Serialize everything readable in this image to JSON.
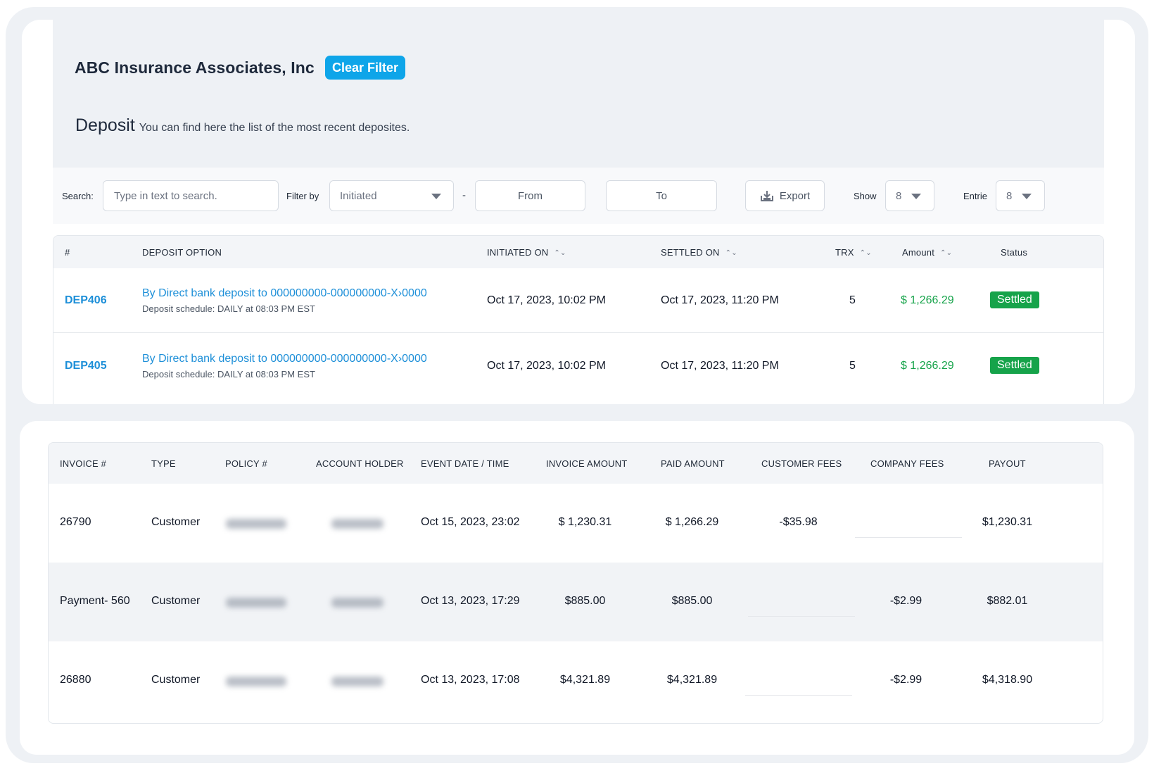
{
  "header": {
    "company": "ABC Insurance Associates, Inc",
    "clear_filter": "Clear Filter",
    "section_title": "Deposit",
    "section_subtitle": "You can find here the list of the most recent deposites."
  },
  "filters": {
    "search_label": "Search:",
    "search_placeholder": "Type in text to search.",
    "filter_by_label": "Filter by",
    "filter_by_value": "Initiated",
    "dash": "-",
    "from": "From",
    "to": "To",
    "export": "Export",
    "show_label": "Show",
    "show_value": "8",
    "entries_label": "Entrie",
    "entries_value": "8"
  },
  "deposits": {
    "headers": {
      "id": "#",
      "option": "DEPOSIT OPTION",
      "initiated": "INITIATED ON",
      "settled": "SETTLED ON",
      "trx": "TRX",
      "amount": "Amount",
      "status": "Status"
    },
    "sort_icon": "⌃⌄",
    "rows": [
      {
        "id": "DEP406",
        "option": "By Direct bank deposit to 000000000-000000000-X›0000",
        "schedule": "Deposit schedule: DAILY at 08:03 PM EST",
        "initiated": "Oct 17, 2023, 10:02 PM",
        "settled": "Oct 17, 2023, 11:20 PM",
        "trx": "5",
        "amount": "$ 1,266.29",
        "status": "Settled"
      },
      {
        "id": "DEP405",
        "option": "By Direct bank deposit to 000000000-000000000-X›0000",
        "schedule": "Deposit schedule: DAILY at 08:03 PM EST",
        "initiated": "Oct 17, 2023, 10:02 PM",
        "settled": "Oct 17, 2023, 11:20 PM",
        "trx": "5",
        "amount": "$ 1,266.29",
        "status": "Settled"
      }
    ]
  },
  "invoices": {
    "headers": {
      "invoice": "INVOICE #",
      "type": "TYPE",
      "policy": "POLICY #",
      "holder": "ACCOUNT HOLDER",
      "event": "EVENT DATE / TIME",
      "invoice_amount": "INVOICE AMOUNT",
      "paid_amount": "PAID AMOUNT",
      "customer_fees": "CUSTOMER FEES",
      "company_fees": "COMPANY FEES",
      "payout": "PAYOUT"
    },
    "rows": [
      {
        "invoice": "26790",
        "type": "Customer",
        "event": "Oct 15, 2023, 23:02",
        "invoice_amount": "$ 1,230.31",
        "paid_amount": "$ 1,266.29",
        "customer_fees": "-$35.98",
        "company_fees": "",
        "payout": "$1,230.31"
      },
      {
        "invoice": "Payment- 560",
        "type": "Customer",
        "event": "Oct 13, 2023, 17:29",
        "invoice_amount": "$885.00",
        "paid_amount": "$885.00",
        "customer_fees": "",
        "company_fees": "-$2.99",
        "payout": "$882.01"
      },
      {
        "invoice": "26880",
        "type": "Customer",
        "event": "Oct 13, 2023, 17:08",
        "invoice_amount": "$4,321.89",
        "paid_amount": "$4,321.89",
        "customer_fees": "",
        "company_fees": "-$2.99",
        "payout": "$4,318.90"
      }
    ]
  },
  "colors": {
    "accent": "#0ea5e9",
    "link": "#1d8fd8",
    "positive": "#16a34a",
    "negative": "#dc2626",
    "panel": "#eef1f5"
  }
}
